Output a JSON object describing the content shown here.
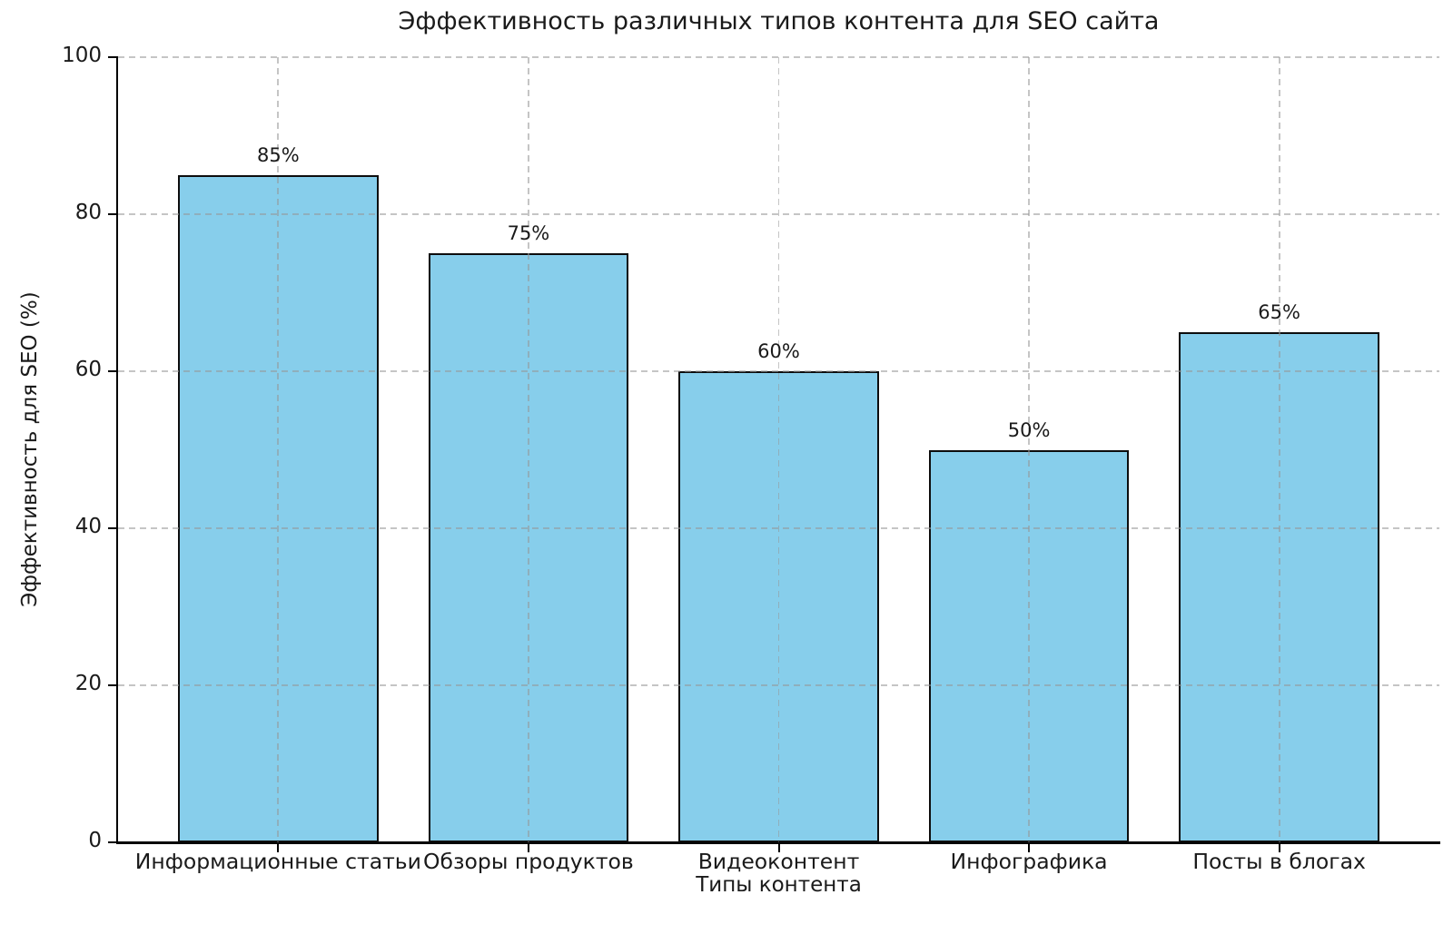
{
  "chart_data": {
    "type": "bar",
    "title": "Эффективность различных типов контента для SEO сайта",
    "xlabel": "Типы контента",
    "ylabel": "Эффективность для SEO (%)",
    "categories": [
      "Информационные статьи",
      "Обзоры продуктов",
      "Видеоконтент",
      "Инфографика",
      "Посты в блогах"
    ],
    "values": [
      85,
      75,
      60,
      50,
      65
    ],
    "bar_labels": [
      "85%",
      "75%",
      "60%",
      "50%",
      "65%"
    ],
    "ylim": [
      0,
      100
    ],
    "yticks": [
      0,
      20,
      40,
      60,
      80,
      100
    ],
    "grid": true,
    "grid_style": "dashed",
    "grid_over_bars": true,
    "legend": "none",
    "bar_color": "#87CEEB",
    "bar_edge_color": "#0d0d0d",
    "grid_color": "#969696",
    "axis_color": "#000000",
    "text_color": "#1a1a1a"
  }
}
